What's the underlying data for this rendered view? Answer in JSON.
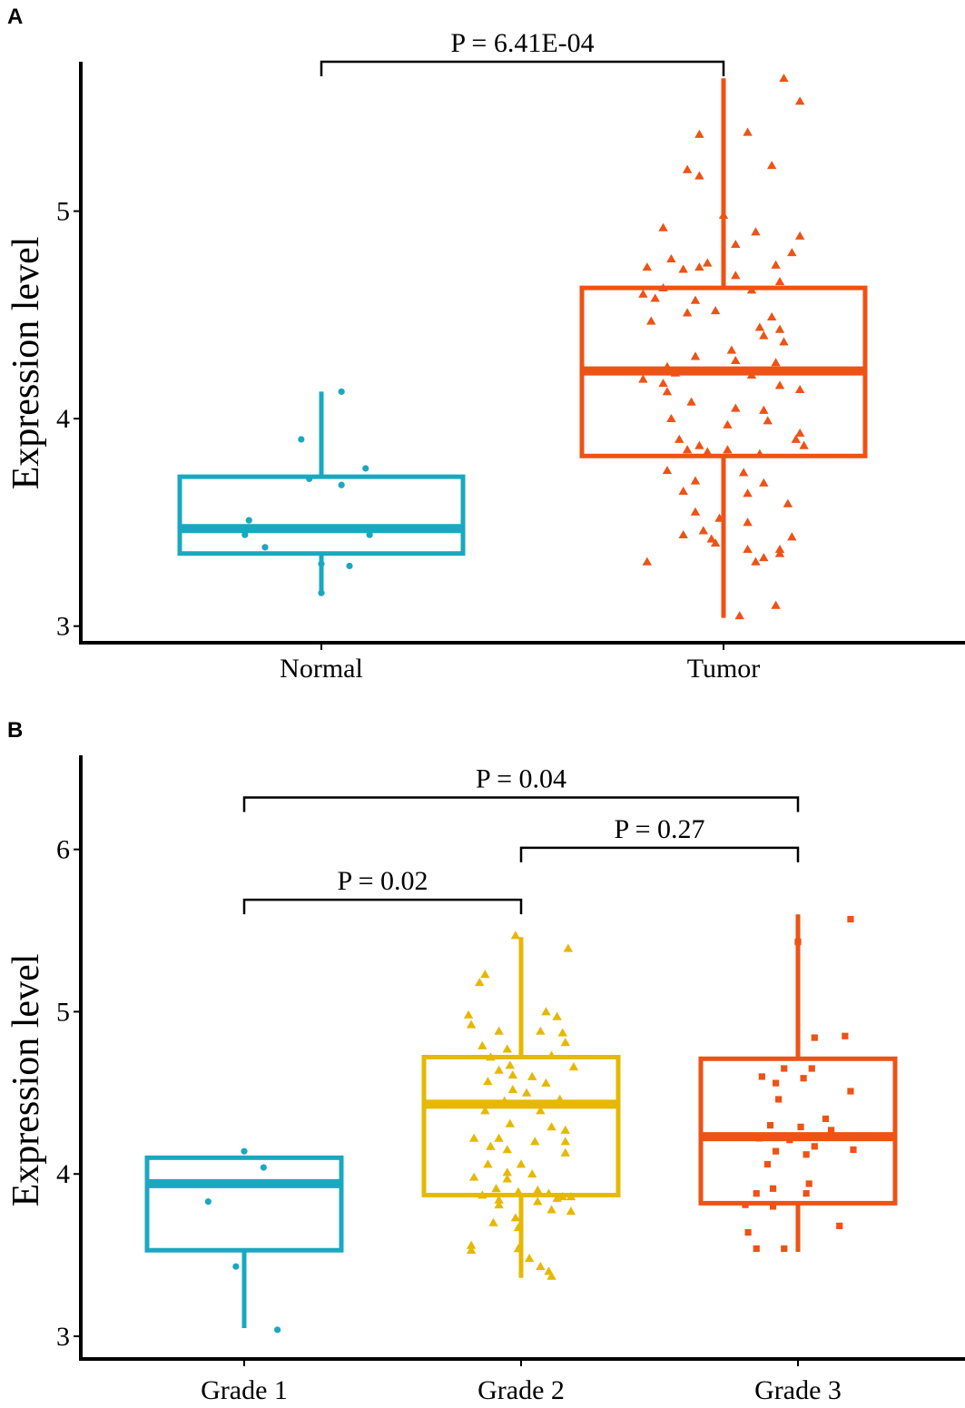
{
  "colors": {
    "normal": "#1aa8c0",
    "tumor": "#ee5215",
    "grade1": "#1aa8c0",
    "grade2": "#e6b800",
    "grade3": "#ee5215",
    "axis": "#000000"
  },
  "chart_data": [
    {
      "panel": "A",
      "type": "box",
      "ylabel": "Expression level",
      "xlabel": "",
      "ylim": [
        2.92,
        5.72
      ],
      "yticks": [
        3,
        4,
        5
      ],
      "categories": [
        "Normal",
        "Tumor"
      ],
      "boxes": [
        {
          "name": "Normal",
          "color_key": "normal",
          "marker": "circle",
          "q1": 3.35,
          "median": 3.47,
          "q3": 3.72,
          "whisker_low": 3.15,
          "whisker_high": 4.13
        },
        {
          "name": "Tumor",
          "color_key": "tumor",
          "marker": "triangle",
          "q1": 3.82,
          "median": 4.23,
          "q3": 4.63,
          "whisker_low": 3.04,
          "whisker_high": 5.64
        }
      ],
      "points": [
        {
          "cat": 0,
          "dx": 0.05,
          "y": 4.13
        },
        {
          "cat": 0,
          "dx": -0.05,
          "y": 3.9
        },
        {
          "cat": 0,
          "dx": 0.11,
          "y": 3.76
        },
        {
          "cat": 0,
          "dx": -0.03,
          "y": 3.71
        },
        {
          "cat": 0,
          "dx": 0.05,
          "y": 3.68
        },
        {
          "cat": 0,
          "dx": -0.18,
          "y": 3.51
        },
        {
          "cat": 0,
          "dx": -0.19,
          "y": 3.44
        },
        {
          "cat": 0,
          "dx": 0.12,
          "y": 3.44
        },
        {
          "cat": 0,
          "dx": -0.14,
          "y": 3.38
        },
        {
          "cat": 0,
          "dx": 0.0,
          "y": 3.3
        },
        {
          "cat": 0,
          "dx": 0.07,
          "y": 3.29
        },
        {
          "cat": 0,
          "dx": 0.0,
          "y": 3.16
        },
        {
          "cat": 1,
          "dx": 0.15,
          "y": 5.64
        },
        {
          "cat": 1,
          "dx": 0.19,
          "y": 5.53
        },
        {
          "cat": 1,
          "dx": -0.06,
          "y": 5.37
        },
        {
          "cat": 1,
          "dx": 0.06,
          "y": 5.38
        },
        {
          "cat": 1,
          "dx": 0.12,
          "y": 5.22
        },
        {
          "cat": 1,
          "dx": -0.09,
          "y": 5.2
        },
        {
          "cat": 1,
          "dx": -0.06,
          "y": 5.17
        },
        {
          "cat": 1,
          "dx": 0.0,
          "y": 4.98
        },
        {
          "cat": 1,
          "dx": -0.15,
          "y": 4.92
        },
        {
          "cat": 1,
          "dx": 0.08,
          "y": 4.9
        },
        {
          "cat": 1,
          "dx": 0.19,
          "y": 4.88
        },
        {
          "cat": 1,
          "dx": 0.03,
          "y": 4.84
        },
        {
          "cat": 1,
          "dx": 0.17,
          "y": 4.8
        },
        {
          "cat": 1,
          "dx": -0.13,
          "y": 4.77
        },
        {
          "cat": 1,
          "dx": -0.04,
          "y": 4.75
        },
        {
          "cat": 1,
          "dx": 0.13,
          "y": 4.74
        },
        {
          "cat": 1,
          "dx": -0.19,
          "y": 4.73
        },
        {
          "cat": 1,
          "dx": -0.06,
          "y": 4.73
        },
        {
          "cat": 1,
          "dx": -0.1,
          "y": 4.72
        },
        {
          "cat": 1,
          "dx": 0.03,
          "y": 4.69
        },
        {
          "cat": 1,
          "dx": 0.14,
          "y": 4.66
        },
        {
          "cat": 1,
          "dx": -0.15,
          "y": 4.63
        },
        {
          "cat": 1,
          "dx": 0.07,
          "y": 4.62
        },
        {
          "cat": 1,
          "dx": -0.2,
          "y": 4.6
        },
        {
          "cat": 1,
          "dx": -0.17,
          "y": 4.58
        },
        {
          "cat": 1,
          "dx": -0.07,
          "y": 4.57
        },
        {
          "cat": 1,
          "dx": -0.02,
          "y": 4.52
        },
        {
          "cat": 1,
          "dx": -0.09,
          "y": 4.51
        },
        {
          "cat": 1,
          "dx": 0.12,
          "y": 4.49
        },
        {
          "cat": 1,
          "dx": -0.18,
          "y": 4.47
        },
        {
          "cat": 1,
          "dx": 0.09,
          "y": 4.44
        },
        {
          "cat": 1,
          "dx": 0.14,
          "y": 4.43
        },
        {
          "cat": 1,
          "dx": 0.1,
          "y": 4.4
        },
        {
          "cat": 1,
          "dx": 0.15,
          "y": 4.37
        },
        {
          "cat": 1,
          "dx": 0.02,
          "y": 4.33
        },
        {
          "cat": 1,
          "dx": -0.07,
          "y": 4.3
        },
        {
          "cat": 1,
          "dx": 0.03,
          "y": 4.28
        },
        {
          "cat": 1,
          "dx": 0.13,
          "y": 4.27
        },
        {
          "cat": 1,
          "dx": -0.14,
          "y": 4.25
        },
        {
          "cat": 1,
          "dx": -0.12,
          "y": 4.22
        },
        {
          "cat": 1,
          "dx": 0.07,
          "y": 4.21
        },
        {
          "cat": 1,
          "dx": -0.2,
          "y": 4.19
        },
        {
          "cat": 1,
          "dx": -0.15,
          "y": 4.17
        },
        {
          "cat": 1,
          "dx": 0.14,
          "y": 4.16
        },
        {
          "cat": 1,
          "dx": 0.19,
          "y": 4.14
        },
        {
          "cat": 1,
          "dx": -0.14,
          "y": 4.13
        },
        {
          "cat": 1,
          "dx": -0.08,
          "y": 4.08
        },
        {
          "cat": 1,
          "dx": 0.03,
          "y": 4.05
        },
        {
          "cat": 1,
          "dx": 0.1,
          "y": 4.04
        },
        {
          "cat": 1,
          "dx": -0.13,
          "y": 4.0
        },
        {
          "cat": 1,
          "dx": 0.11,
          "y": 3.99
        },
        {
          "cat": 1,
          "dx": 0.01,
          "y": 3.97
        },
        {
          "cat": 1,
          "dx": 0.19,
          "y": 3.93
        },
        {
          "cat": 1,
          "dx": -0.11,
          "y": 3.9
        },
        {
          "cat": 1,
          "dx": 0.18,
          "y": 3.9
        },
        {
          "cat": 1,
          "dx": -0.06,
          "y": 3.87
        },
        {
          "cat": 1,
          "dx": 0.2,
          "y": 3.87
        },
        {
          "cat": 1,
          "dx": -0.09,
          "y": 3.85
        },
        {
          "cat": 1,
          "dx": 0.01,
          "y": 3.85
        },
        {
          "cat": 1,
          "dx": -0.04,
          "y": 3.84
        },
        {
          "cat": 1,
          "dx": 0.09,
          "y": 3.83
        },
        {
          "cat": 1,
          "dx": -0.14,
          "y": 3.75
        },
        {
          "cat": 1,
          "dx": 0.05,
          "y": 3.74
        },
        {
          "cat": 1,
          "dx": -0.07,
          "y": 3.7
        },
        {
          "cat": 1,
          "dx": 0.1,
          "y": 3.69
        },
        {
          "cat": 1,
          "dx": -0.1,
          "y": 3.65
        },
        {
          "cat": 1,
          "dx": 0.06,
          "y": 3.64
        },
        {
          "cat": 1,
          "dx": 0.16,
          "y": 3.59
        },
        {
          "cat": 1,
          "dx": -0.07,
          "y": 3.55
        },
        {
          "cat": 1,
          "dx": -0.01,
          "y": 3.52
        },
        {
          "cat": 1,
          "dx": 0.06,
          "y": 3.5
        },
        {
          "cat": 1,
          "dx": -0.05,
          "y": 3.46
        },
        {
          "cat": 1,
          "dx": -0.1,
          "y": 3.44
        },
        {
          "cat": 1,
          "dx": 0.17,
          "y": 3.43
        },
        {
          "cat": 1,
          "dx": -0.03,
          "y": 3.42
        },
        {
          "cat": 1,
          "dx": -0.02,
          "y": 3.4
        },
        {
          "cat": 1,
          "dx": 0.14,
          "y": 3.37
        },
        {
          "cat": 1,
          "dx": 0.06,
          "y": 3.37
        },
        {
          "cat": 1,
          "dx": 0.14,
          "y": 3.35
        },
        {
          "cat": 1,
          "dx": 0.1,
          "y": 3.33
        },
        {
          "cat": 1,
          "dx": 0.08,
          "y": 3.31
        },
        {
          "cat": 1,
          "dx": -0.19,
          "y": 3.31
        },
        {
          "cat": 1,
          "dx": 0.13,
          "y": 3.1
        },
        {
          "cat": 1,
          "dx": 0.04,
          "y": 3.05
        }
      ],
      "comparisons": [
        {
          "from": 0,
          "to": 1,
          "y": 5.72,
          "label": "P = 6.41E-04"
        }
      ]
    },
    {
      "panel": "B",
      "type": "box",
      "ylabel": "Expression level",
      "xlabel": "",
      "ylim": [
        2.86,
        6.58
      ],
      "yticks": [
        3,
        4,
        5,
        6
      ],
      "categories": [
        "Grade 1",
        "Grade 2",
        "Grade 3"
      ],
      "boxes": [
        {
          "name": "Grade 1",
          "color_key": "grade1",
          "marker": "circle",
          "q1": 3.53,
          "median": 3.94,
          "q3": 4.1,
          "whisker_low": 3.05,
          "whisker_high": 4.1
        },
        {
          "name": "Grade 2",
          "color_key": "grade2",
          "marker": "triangle",
          "q1": 3.87,
          "median": 4.43,
          "q3": 4.72,
          "whisker_low": 3.36,
          "whisker_high": 5.46
        },
        {
          "name": "Grade 3",
          "color_key": "grade3",
          "marker": "square",
          "q1": 3.82,
          "median": 4.23,
          "q3": 4.71,
          "whisker_low": 3.52,
          "whisker_high": 5.6
        }
      ],
      "points": [
        {
          "cat": 0,
          "dx": 0.0,
          "y": 4.14
        },
        {
          "cat": 0,
          "dx": 0.07,
          "y": 4.04
        },
        {
          "cat": 0,
          "dx": -0.13,
          "y": 3.83
        },
        {
          "cat": 0,
          "dx": -0.03,
          "y": 3.43
        },
        {
          "cat": 0,
          "dx": 0.12,
          "y": 3.04
        },
        {
          "cat": 1,
          "dx": -0.02,
          "y": 5.47
        },
        {
          "cat": 1,
          "dx": 0.17,
          "y": 5.39
        },
        {
          "cat": 1,
          "dx": -0.13,
          "y": 5.23
        },
        {
          "cat": 1,
          "dx": -0.15,
          "y": 5.18
        },
        {
          "cat": 1,
          "dx": 0.09,
          "y": 5.0
        },
        {
          "cat": 1,
          "dx": 0.13,
          "y": 4.97
        },
        {
          "cat": 1,
          "dx": -0.19,
          "y": 4.98
        },
        {
          "cat": 1,
          "dx": -0.18,
          "y": 4.92
        },
        {
          "cat": 1,
          "dx": -0.08,
          "y": 4.88
        },
        {
          "cat": 1,
          "dx": 0.07,
          "y": 4.88
        },
        {
          "cat": 1,
          "dx": 0.15,
          "y": 4.87
        },
        {
          "cat": 1,
          "dx": 0.16,
          "y": 4.81
        },
        {
          "cat": 1,
          "dx": -0.14,
          "y": 4.79
        },
        {
          "cat": 1,
          "dx": -0.05,
          "y": 4.77
        },
        {
          "cat": 1,
          "dx": 0.11,
          "y": 4.73
        },
        {
          "cat": 1,
          "dx": -0.11,
          "y": 4.72
        },
        {
          "cat": 1,
          "dx": -0.04,
          "y": 4.67
        },
        {
          "cat": 1,
          "dx": -0.08,
          "y": 4.64
        },
        {
          "cat": 1,
          "dx": -0.03,
          "y": 4.61
        },
        {
          "cat": 1,
          "dx": 0.19,
          "y": 4.66
        },
        {
          "cat": 1,
          "dx": 0.04,
          "y": 4.6
        },
        {
          "cat": 1,
          "dx": -0.12,
          "y": 4.57
        },
        {
          "cat": 1,
          "dx": 0.09,
          "y": 4.56
        },
        {
          "cat": 1,
          "dx": -0.03,
          "y": 4.52
        },
        {
          "cat": 1,
          "dx": 0.02,
          "y": 4.5
        },
        {
          "cat": 1,
          "dx": 0.14,
          "y": 4.46
        },
        {
          "cat": 1,
          "dx": -0.06,
          "y": 4.45
        },
        {
          "cat": 1,
          "dx": 0.07,
          "y": 4.39
        },
        {
          "cat": 1,
          "dx": -0.13,
          "y": 4.39
        },
        {
          "cat": 1,
          "dx": -0.04,
          "y": 4.31
        },
        {
          "cat": 1,
          "dx": 0.11,
          "y": 4.29
        },
        {
          "cat": 1,
          "dx": 0.16,
          "y": 4.27
        },
        {
          "cat": 1,
          "dx": -0.17,
          "y": 4.22
        },
        {
          "cat": 1,
          "dx": -0.08,
          "y": 4.22
        },
        {
          "cat": 1,
          "dx": 0.05,
          "y": 4.2
        },
        {
          "cat": 1,
          "dx": 0.16,
          "y": 4.2
        },
        {
          "cat": 1,
          "dx": -0.11,
          "y": 4.17
        },
        {
          "cat": 1,
          "dx": -0.05,
          "y": 4.15
        },
        {
          "cat": 1,
          "dx": 0.16,
          "y": 4.13
        },
        {
          "cat": 1,
          "dx": -0.12,
          "y": 4.06
        },
        {
          "cat": 1,
          "dx": 0.0,
          "y": 4.06
        },
        {
          "cat": 1,
          "dx": -0.05,
          "y": 4.01
        },
        {
          "cat": 1,
          "dx": 0.04,
          "y": 4.0
        },
        {
          "cat": 1,
          "dx": -0.17,
          "y": 3.98
        },
        {
          "cat": 1,
          "dx": -0.05,
          "y": 3.97
        },
        {
          "cat": 1,
          "dx": -0.09,
          "y": 3.91
        },
        {
          "cat": 1,
          "dx": 0.06,
          "y": 3.9
        },
        {
          "cat": 1,
          "dx": -0.01,
          "y": 3.89
        },
        {
          "cat": 1,
          "dx": 0.1,
          "y": 3.88
        },
        {
          "cat": 1,
          "dx": -0.14,
          "y": 3.87
        },
        {
          "cat": 1,
          "dx": 0.15,
          "y": 3.86
        },
        {
          "cat": 1,
          "dx": 0.13,
          "y": 3.85
        },
        {
          "cat": 1,
          "dx": 0.18,
          "y": 3.86
        },
        {
          "cat": 1,
          "dx": -0.08,
          "y": 3.84
        },
        {
          "cat": 1,
          "dx": 0.06,
          "y": 3.83
        },
        {
          "cat": 1,
          "dx": -0.08,
          "y": 3.81
        },
        {
          "cat": 1,
          "dx": 0.11,
          "y": 3.78
        },
        {
          "cat": 1,
          "dx": 0.18,
          "y": 3.77
        },
        {
          "cat": 1,
          "dx": -0.02,
          "y": 3.73
        },
        {
          "cat": 1,
          "dx": -0.1,
          "y": 3.7
        },
        {
          "cat": 1,
          "dx": -0.01,
          "y": 3.67
        },
        {
          "cat": 1,
          "dx": -0.18,
          "y": 3.56
        },
        {
          "cat": 1,
          "dx": -0.01,
          "y": 3.54
        },
        {
          "cat": 1,
          "dx": -0.18,
          "y": 3.53
        },
        {
          "cat": 1,
          "dx": 0.03,
          "y": 3.48
        },
        {
          "cat": 1,
          "dx": 0.07,
          "y": 3.43
        },
        {
          "cat": 1,
          "dx": 0.1,
          "y": 3.4
        },
        {
          "cat": 1,
          "dx": 0.11,
          "y": 3.37
        },
        {
          "cat": 2,
          "dx": 0.19,
          "y": 5.57
        },
        {
          "cat": 2,
          "dx": 0.0,
          "y": 5.43
        },
        {
          "cat": 2,
          "dx": 0.17,
          "y": 4.85
        },
        {
          "cat": 2,
          "dx": 0.06,
          "y": 4.84
        },
        {
          "cat": 2,
          "dx": 0.05,
          "y": 4.65
        },
        {
          "cat": 2,
          "dx": -0.05,
          "y": 4.65
        },
        {
          "cat": 2,
          "dx": 0.02,
          "y": 4.59
        },
        {
          "cat": 2,
          "dx": -0.13,
          "y": 4.6
        },
        {
          "cat": 2,
          "dx": -0.08,
          "y": 4.56
        },
        {
          "cat": 2,
          "dx": 0.19,
          "y": 4.51
        },
        {
          "cat": 2,
          "dx": -0.07,
          "y": 4.46
        },
        {
          "cat": 2,
          "dx": 0.1,
          "y": 4.34
        },
        {
          "cat": 2,
          "dx": -0.1,
          "y": 4.3
        },
        {
          "cat": 2,
          "dx": 0.01,
          "y": 4.29
        },
        {
          "cat": 2,
          "dx": 0.12,
          "y": 4.27
        },
        {
          "cat": 2,
          "dx": -0.14,
          "y": 4.22
        },
        {
          "cat": 2,
          "dx": -0.03,
          "y": 4.21
        },
        {
          "cat": 2,
          "dx": 0.06,
          "y": 4.17
        },
        {
          "cat": 2,
          "dx": 0.2,
          "y": 4.15
        },
        {
          "cat": 2,
          "dx": -0.08,
          "y": 4.14
        },
        {
          "cat": 2,
          "dx": 0.03,
          "y": 4.12
        },
        {
          "cat": 2,
          "dx": -0.11,
          "y": 4.06
        },
        {
          "cat": 2,
          "dx": 0.04,
          "y": 3.94
        },
        {
          "cat": 2,
          "dx": -0.09,
          "y": 3.91
        },
        {
          "cat": 2,
          "dx": -0.15,
          "y": 3.88
        },
        {
          "cat": 2,
          "dx": 0.03,
          "y": 3.88
        },
        {
          "cat": 2,
          "dx": -0.19,
          "y": 3.81
        },
        {
          "cat": 2,
          "dx": -0.09,
          "y": 3.8
        },
        {
          "cat": 2,
          "dx": 0.15,
          "y": 3.68
        },
        {
          "cat": 2,
          "dx": -0.18,
          "y": 3.64
        },
        {
          "cat": 2,
          "dx": -0.15,
          "y": 3.54
        },
        {
          "cat": 2,
          "dx": -0.05,
          "y": 3.54
        }
      ],
      "comparisons": [
        {
          "from": 0,
          "to": 2,
          "y": 6.32,
          "label": "P = 0.04"
        },
        {
          "from": 1,
          "to": 2,
          "y": 6.01,
          "label": "P = 0.27"
        },
        {
          "from": 0,
          "to": 1,
          "y": 5.69,
          "label": "P = 0.02"
        }
      ]
    }
  ]
}
